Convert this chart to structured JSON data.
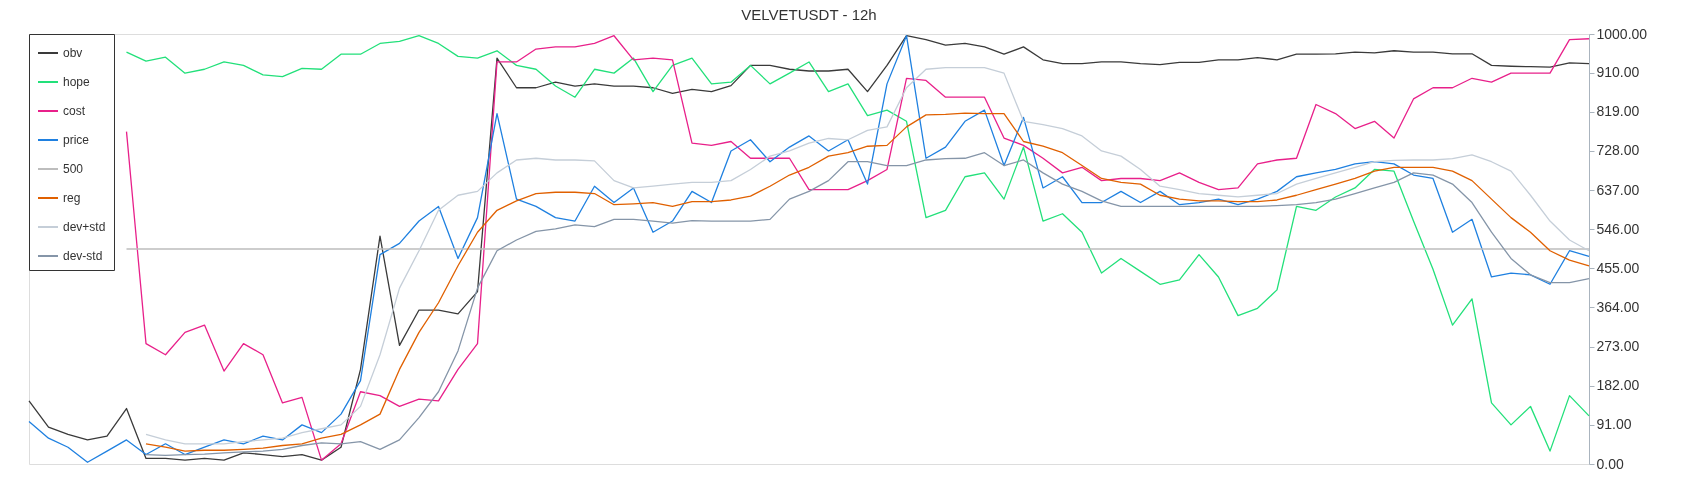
{
  "chart_data": {
    "type": "line",
    "title": "VELVETUSDT - 12h",
    "categories": [
      null,
      null,
      null,
      null,
      null,
      null,
      null,
      null,
      null,
      null,
      null,
      null,
      null,
      null,
      null,
      null,
      null,
      null,
      null,
      null,
      null,
      null,
      null,
      null,
      null,
      null,
      null,
      null,
      null,
      null,
      null,
      null,
      null,
      null,
      null,
      null,
      null,
      null,
      null,
      null,
      null,
      null,
      null,
      null,
      null,
      null,
      null,
      null,
      null,
      null,
      null,
      null,
      null,
      null,
      null,
      null,
      null,
      null,
      null,
      null,
      null,
      null,
      null,
      null,
      null,
      null,
      null,
      null,
      null,
      null,
      null,
      null,
      null,
      null,
      null,
      null,
      null,
      null,
      null,
      null,
      null
    ],
    "ylim": [
      0,
      1000
    ],
    "yticks": [
      {
        "value": 0,
        "label": "0.00"
      },
      {
        "value": 91,
        "label": "91.00"
      },
      {
        "value": 182,
        "label": "182.00"
      },
      {
        "value": 273,
        "label": "273.00"
      },
      {
        "value": 364,
        "label": "364.00"
      },
      {
        "value": 455,
        "label": "455.00"
      },
      {
        "value": 546,
        "label": "546.00"
      },
      {
        "value": 637,
        "label": "637.00"
      },
      {
        "value": 728,
        "label": "728.00"
      },
      {
        "value": 819,
        "label": "819.00"
      },
      {
        "value": 910,
        "label": "910.00"
      },
      {
        "value": 1000,
        "label": "1000.00"
      }
    ],
    "grid": false,
    "legend": "top left",
    "marker": "none",
    "line_style": "solid",
    "tick_labels": "y",
    "series": [
      {
        "name": "obv",
        "color": "#3a3a3a",
        "values": [
          147,
          86,
          69,
          56,
          65,
          129,
          13,
          13,
          9,
          13,
          9,
          26,
          22,
          17,
          22,
          9,
          39,
          220,
          530,
          276,
          358,
          358,
          349,
          401,
          944,
          875,
          875,
          888,
          879,
          884,
          879,
          879,
          875,
          862,
          871,
          866,
          880,
          927,
          927,
          918,
          914,
          914,
          918,
          866,
          927,
          996,
          987,
          974,
          978,
          970,
          953,
          970,
          940,
          931,
          931,
          935,
          935,
          931,
          929,
          934,
          934,
          940,
          940,
          945,
          940,
          953,
          953,
          954,
          958,
          956,
          961,
          958,
          958,
          954,
          954,
          927,
          925,
          924,
          923,
          933,
          931
        ]
      },
      {
        "name": "hope",
        "color": "#22e07a",
        "values": [
          null,
          null,
          null,
          null,
          null,
          958,
          937,
          946,
          909,
          918,
          935,
          927,
          905,
          901,
          920,
          918,
          953,
          953,
          978,
          983,
          996,
          978,
          948,
          944,
          961,
          927,
          918,
          879,
          853,
          918,
          909,
          944,
          866,
          927,
          944,
          884,
          888,
          927,
          884,
          909,
          935,
          866,
          884,
          810,
          823,
          797,
          573,
          590,
          668,
          677,
          616,
          737,
          565,
          582,
          539,
          444,
          478,
          448,
          418,
          428,
          487,
          435,
          345,
          362,
          405,
          599,
          590,
          621,
          642,
          685,
          681,
          565,
          453,
          323,
          384,
          142,
          91,
          134,
          30,
          159,
          112
        ]
      },
      {
        "name": "cost",
        "color": "#e8208a",
        "values": [
          null,
          null,
          null,
          null,
          null,
          773,
          280,
          254,
          306,
          323,
          216,
          280,
          254,
          142,
          155,
          9,
          47,
          168,
          159,
          134,
          151,
          147,
          220,
          280,
          935,
          935,
          965,
          970,
          970,
          978,
          996,
          940,
          944,
          940,
          746,
          741,
          750,
          711,
          711,
          711,
          638,
          638,
          638,
          659,
          685,
          897,
          892,
          853,
          853,
          853,
          758,
          741,
          711,
          677,
          690,
          659,
          664,
          664,
          659,
          677,
          655,
          638,
          642,
          698,
          707,
          711,
          836,
          815,
          780,
          797,
          758,
          849,
          875,
          875,
          897,
          888,
          909,
          909,
          909,
          987,
          989
        ]
      },
      {
        "name": "price",
        "color": "#1f80e0",
        "values": [
          99,
          60,
          39,
          4,
          30,
          56,
          22,
          47,
          22,
          39,
          56,
          47,
          65,
          56,
          91,
          73,
          116,
          194,
          487,
          513,
          565,
          599,
          478,
          573,
          815,
          616,
          599,
          573,
          565,
          646,
          608,
          642,
          539,
          565,
          634,
          608,
          728,
          754,
          703,
          737,
          763,
          728,
          754,
          651,
          884,
          996,
          711,
          737,
          797,
          823,
          694,
          806,
          642,
          668,
          608,
          608,
          634,
          608,
          634,
          603,
          608,
          616,
          603,
          616,
          634,
          668,
          677,
          685,
          698,
          703,
          698,
          672,
          664,
          539,
          569,
          435,
          444,
          440,
          418,
          496,
          483
        ]
      },
      {
        "name": "500",
        "color": "#bdbdbd",
        "values": [
          null,
          null,
          null,
          null,
          null,
          500,
          500,
          500,
          500,
          500,
          500,
          500,
          500,
          500,
          500,
          500,
          500,
          500,
          500,
          500,
          500,
          500,
          500,
          500,
          500,
          500,
          500,
          500,
          500,
          500,
          500,
          500,
          500,
          500,
          500,
          500,
          500,
          500,
          500,
          500,
          500,
          500,
          500,
          500,
          500,
          500,
          500,
          500,
          500,
          500,
          500,
          500,
          500,
          500,
          500,
          500,
          500,
          500,
          500,
          500,
          500,
          500,
          500,
          500,
          500,
          500,
          500,
          500,
          500,
          500,
          500,
          500,
          500,
          500,
          500,
          500,
          500,
          500,
          500,
          500,
          500
        ]
      },
      {
        "name": "reg",
        "color": "#e06000",
        "values": [
          null,
          null,
          null,
          null,
          null,
          null,
          47,
          39,
          30,
          32,
          32,
          34,
          37,
          43,
          47,
          60,
          69,
          91,
          116,
          220,
          306,
          375,
          461,
          539,
          590,
          612,
          629,
          632,
          632,
          629,
          603,
          605,
          608,
          599,
          610,
          610,
          614,
          623,
          646,
          672,
          690,
          716,
          724,
          739,
          741,
          784,
          812,
          813,
          816,
          815,
          815,
          750,
          739,
          724,
          694,
          664,
          655,
          651,
          625,
          616,
          612,
          612,
          610,
          610,
          614,
          625,
          638,
          651,
          664,
          681,
          690,
          690,
          690,
          681,
          659,
          616,
          573,
          539,
          496,
          474,
          461
        ]
      },
      {
        "name": "dev+std",
        "color": "#c5ced8",
        "values": [
          null,
          null,
          null,
          null,
          null,
          null,
          69,
          56,
          47,
          47,
          47,
          52,
          56,
          60,
          73,
          82,
          91,
          134,
          254,
          409,
          496,
          590,
          625,
          634,
          677,
          707,
          711,
          707,
          707,
          705,
          659,
          642,
          646,
          651,
          655,
          655,
          659,
          685,
          716,
          728,
          746,
          757,
          754,
          776,
          784,
          875,
          918,
          922,
          922,
          922,
          909,
          797,
          789,
          780,
          763,
          728,
          716,
          685,
          646,
          638,
          629,
          625,
          621,
          625,
          629,
          651,
          664,
          677,
          690,
          703,
          706,
          707,
          707,
          710,
          719,
          703,
          681,
          625,
          565,
          521,
          496
        ]
      },
      {
        "name": "dev-std",
        "color": "#8595a8",
        "values": [
          null,
          null,
          null,
          null,
          null,
          null,
          22,
          20,
          22,
          23,
          26,
          28,
          30,
          34,
          43,
          49,
          47,
          52,
          34,
          56,
          108,
          168,
          263,
          409,
          496,
          521,
          541,
          547,
          556,
          552,
          569,
          569,
          565,
          560,
          566,
          565,
          565,
          565,
          569,
          616,
          634,
          659,
          703,
          703,
          694,
          694,
          707,
          710,
          711,
          724,
          694,
          707,
          677,
          651,
          634,
          612,
          599,
          599,
          599,
          599,
          599,
          599,
          599,
          599,
          601,
          603,
          608,
          616,
          629,
          642,
          655,
          677,
          672,
          651,
          608,
          539,
          478,
          440,
          422,
          422,
          431
        ]
      }
    ]
  }
}
